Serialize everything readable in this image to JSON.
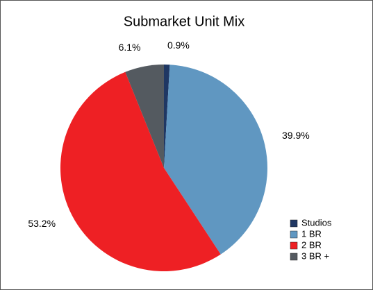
{
  "chart_data": {
    "type": "pie",
    "title": "Submarket Unit Mix",
    "categories": [
      "Studios",
      "1 BR",
      "2 BR",
      "3 BR +"
    ],
    "values": [
      0.9,
      39.9,
      53.2,
      6.1
    ],
    "value_labels": [
      "0.9%",
      "39.9%",
      "53.2%",
      "6.1%"
    ],
    "colors": [
      "#1f3763",
      "#6097c1",
      "#ee2024",
      "#545a60"
    ],
    "legend": "bottom-right"
  }
}
